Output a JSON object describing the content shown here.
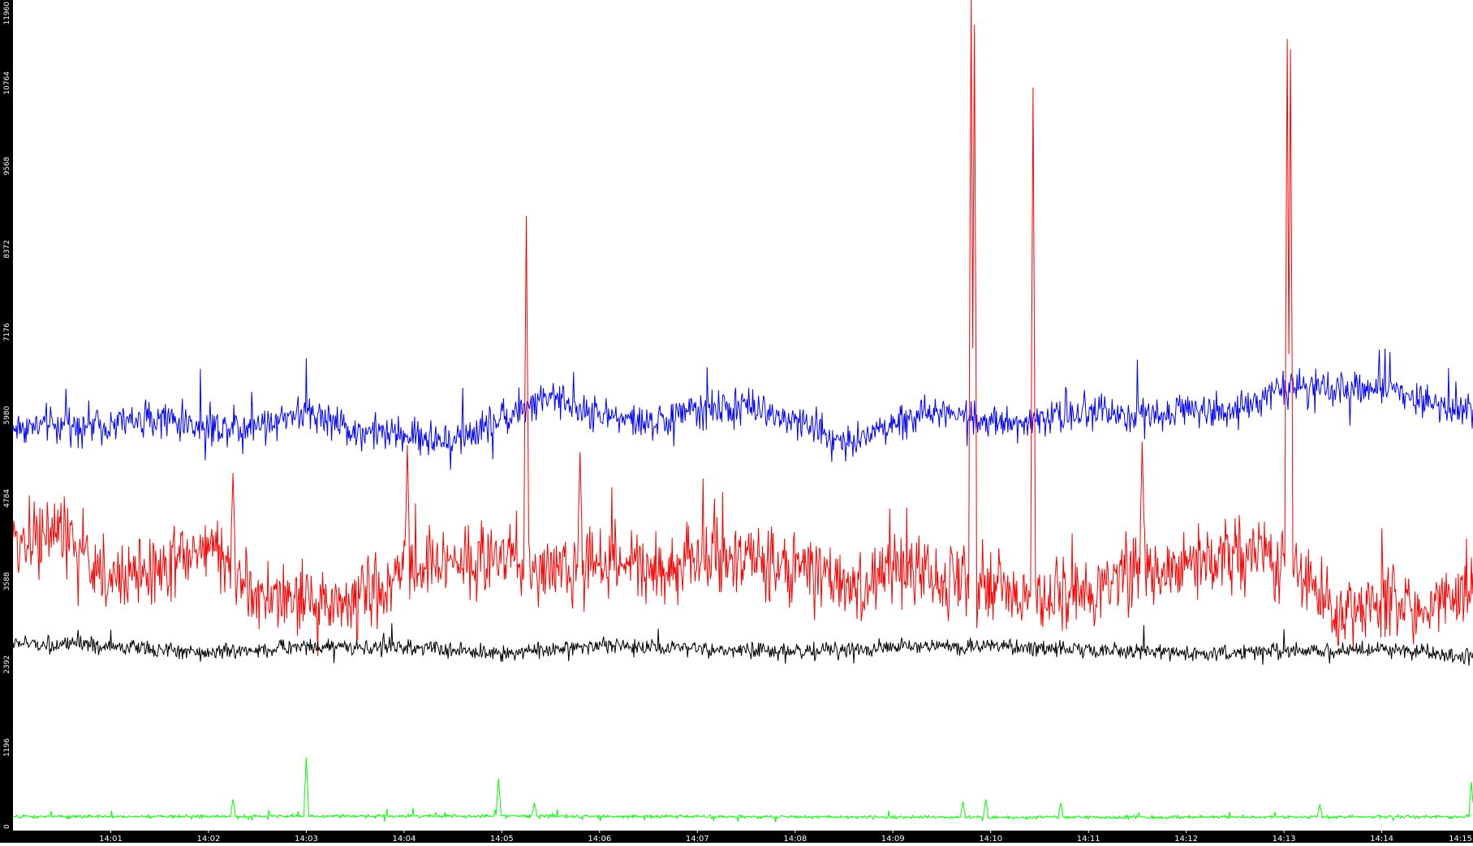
{
  "chart_data": {
    "type": "line",
    "title": "",
    "xlabel": "",
    "ylabel": "",
    "grid": false,
    "legend": "none",
    "ylim": [
      0,
      11960
    ],
    "xlim": [
      "14:00:00",
      "14:14:56"
    ],
    "y_ticks": [
      "0",
      "1196",
      "2392",
      "3588",
      "4784",
      "5980",
      "7176",
      "8372",
      "9568",
      "10764",
      "11960"
    ],
    "x_ticks": [
      "14:01",
      "14:02",
      "14:03",
      "14:04",
      "14:05",
      "14:06",
      "14:07",
      "14:08",
      "14:09",
      "14:10",
      "14:11",
      "14:12",
      "14:13",
      "14:14",
      "14:15"
    ],
    "axis_colors": {
      "y_axis_bar": "#000000",
      "y_axis_label_text": "#ffffff",
      "x_axis_bar": "#000000",
      "x_axis_label_text": "#ffffff"
    },
    "series": [
      {
        "color": "#0000ff",
        "noise": 380,
        "spike_prob": 0.04,
        "spike_amp": 700,
        "anchors": [
          [
            "14:00:00",
            5800
          ],
          [
            "14:00:30",
            5850
          ],
          [
            "14:01:00",
            5850
          ],
          [
            "14:01:30",
            5950
          ],
          [
            "14:02:00",
            5800
          ],
          [
            "14:02:30",
            5850
          ],
          [
            "14:03:00",
            6050
          ],
          [
            "14:03:30",
            5750
          ],
          [
            "14:04:00",
            5700
          ],
          [
            "14:04:30",
            5600
          ],
          [
            "14:05:00",
            5950
          ],
          [
            "14:05:30",
            6200
          ],
          [
            "14:06:00",
            6000
          ],
          [
            "14:06:30",
            5850
          ],
          [
            "14:07:00",
            6050
          ],
          [
            "14:07:30",
            6100
          ],
          [
            "14:08:00",
            5900
          ],
          [
            "14:08:30",
            5600
          ],
          [
            "14:09:00",
            5850
          ],
          [
            "14:09:30",
            6050
          ],
          [
            "14:10:00",
            5900
          ],
          [
            "14:10:30",
            5950
          ],
          [
            "14:11:00",
            6050
          ],
          [
            "14:11:30",
            5950
          ],
          [
            "14:12:00",
            6100
          ],
          [
            "14:12:30",
            6050
          ],
          [
            "14:13:00",
            6400
          ],
          [
            "14:13:30",
            6300
          ],
          [
            "14:14:00",
            6400
          ],
          [
            "14:14:30",
            6150
          ],
          [
            "14:14:56",
            6100
          ]
        ]
      },
      {
        "color": "#ff0000",
        "noise": 750,
        "spike_prob": 0.05,
        "spike_amp": 900,
        "anchors": [
          [
            "14:00:00",
            4150
          ],
          [
            "14:00:30",
            4300
          ],
          [
            "14:01:00",
            3600
          ],
          [
            "14:01:30",
            3800
          ],
          [
            "14:02:00",
            4100
          ],
          [
            "14:02:30",
            3400
          ],
          [
            "14:03:00",
            3300
          ],
          [
            "14:03:30",
            3300
          ],
          [
            "14:04:00",
            3700
          ],
          [
            "14:04:30",
            3900
          ],
          [
            "14:05:00",
            4000
          ],
          [
            "14:05:30",
            3700
          ],
          [
            "14:06:00",
            3900
          ],
          [
            "14:06:30",
            3800
          ],
          [
            "14:07:00",
            3900
          ],
          [
            "14:07:30",
            3900
          ],
          [
            "14:08:00",
            3800
          ],
          [
            "14:08:30",
            3500
          ],
          [
            "14:09:00",
            3700
          ],
          [
            "14:09:30",
            3600
          ],
          [
            "14:10:00",
            3600
          ],
          [
            "14:10:30",
            3300
          ],
          [
            "14:11:00",
            3500
          ],
          [
            "14:11:30",
            3800
          ],
          [
            "14:12:00",
            3800
          ],
          [
            "14:12:30",
            4000
          ],
          [
            "14:13:00",
            3900
          ],
          [
            "14:13:30",
            3200
          ],
          [
            "14:14:00",
            3300
          ],
          [
            "14:14:30",
            3200
          ],
          [
            "14:14:56",
            3600
          ]
        ],
        "peaks": [
          [
            "14:02:15",
            5150
          ],
          [
            "14:04:02",
            5550
          ],
          [
            "14:05:15",
            8850
          ],
          [
            "14:05:48",
            5450
          ],
          [
            "14:09:48",
            11960
          ],
          [
            "14:09:50",
            11600
          ],
          [
            "14:10:26",
            10700
          ],
          [
            "14:11:33",
            5600
          ],
          [
            "14:13:02",
            11400
          ],
          [
            "14:13:04",
            11250
          ]
        ]
      },
      {
        "color": "#000000",
        "noise": 170,
        "spike_prob": 0.015,
        "spike_amp": 400,
        "anchors": [
          [
            "14:00:00",
            2700
          ],
          [
            "14:01:00",
            2650
          ],
          [
            "14:02:00",
            2560
          ],
          [
            "14:03:00",
            2650
          ],
          [
            "14:04:00",
            2640
          ],
          [
            "14:05:00",
            2550
          ],
          [
            "14:06:00",
            2680
          ],
          [
            "14:07:00",
            2600
          ],
          [
            "14:08:00",
            2580
          ],
          [
            "14:09:00",
            2640
          ],
          [
            "14:10:00",
            2660
          ],
          [
            "14:11:00",
            2600
          ],
          [
            "14:12:00",
            2560
          ],
          [
            "14:13:00",
            2580
          ],
          [
            "14:14:00",
            2620
          ],
          [
            "14:14:56",
            2500
          ]
        ]
      },
      {
        "color": "#00ff00",
        "noise": 35,
        "spike_prob": 0.02,
        "spike_amp": 120,
        "anchors": [
          [
            "14:00:00",
            200
          ],
          [
            "14:05:00",
            210
          ],
          [
            "14:10:00",
            190
          ],
          [
            "14:14:56",
            200
          ]
        ],
        "peaks": [
          [
            "14:02:15",
            450
          ],
          [
            "14:03:00",
            1050
          ],
          [
            "14:04:58",
            750
          ],
          [
            "14:05:20",
            400
          ],
          [
            "14:09:43",
            420
          ],
          [
            "14:09:57",
            450
          ],
          [
            "14:10:43",
            400
          ],
          [
            "14:13:22",
            380
          ],
          [
            "14:14:55",
            700
          ]
        ]
      }
    ]
  }
}
